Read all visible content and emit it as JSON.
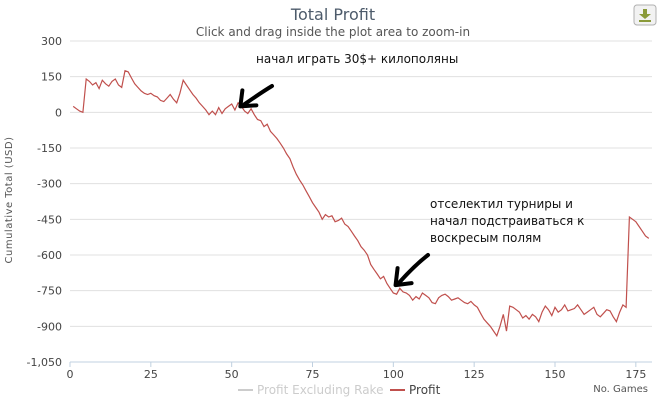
{
  "chart_data": {
    "type": "line",
    "title": "Total Profit",
    "subtitle": "Click and drag inside the plot area to zoom-in",
    "ylabel": "Cumulative Total (USD)",
    "xlabel": "No. Games",
    "xlim": [
      0,
      180
    ],
    "ylim": [
      -1050,
      300
    ],
    "x_ticks": [
      0,
      25,
      50,
      75,
      100,
      125,
      150,
      175
    ],
    "y_ticks": [
      300,
      150,
      0,
      -150,
      -300,
      -450,
      -600,
      -750,
      -900,
      -1050
    ],
    "y_tick_labels": [
      "300",
      "150",
      "0",
      "-150",
      "-300",
      "-450",
      "-600",
      "-750",
      "-900",
      "-1,050"
    ],
    "grid": "horizontal",
    "legend_position": "bottom",
    "series": [
      {
        "name": "Profit Excluding Rake",
        "color": "#cccccc",
        "x": [],
        "y": []
      },
      {
        "name": "Profit",
        "color": "#c0504d",
        "x": [
          1,
          2,
          3,
          4,
          5,
          6,
          7,
          8,
          9,
          10,
          11,
          12,
          13,
          14,
          15,
          16,
          17,
          18,
          19,
          20,
          21,
          22,
          23,
          24,
          25,
          26,
          27,
          28,
          29,
          30,
          31,
          32,
          33,
          34,
          35,
          36,
          37,
          38,
          39,
          40,
          41,
          42,
          43,
          44,
          45,
          46,
          47,
          48,
          49,
          50,
          51,
          52,
          53,
          54,
          55,
          56,
          57,
          58,
          59,
          60,
          61,
          62,
          63,
          64,
          65,
          66,
          67,
          68,
          69,
          70,
          71,
          72,
          73,
          74,
          75,
          76,
          77,
          78,
          79,
          80,
          81,
          82,
          83,
          84,
          85,
          86,
          87,
          88,
          89,
          90,
          91,
          92,
          93,
          94,
          95,
          96,
          97,
          98,
          99,
          100,
          101,
          102,
          103,
          104,
          105,
          106,
          107,
          108,
          109,
          110,
          111,
          112,
          113,
          114,
          115,
          116,
          117,
          118,
          119,
          120,
          121,
          122,
          123,
          124,
          125,
          126,
          127,
          128,
          129,
          130,
          131,
          132,
          133,
          134,
          135,
          136,
          137,
          138,
          139,
          140,
          141,
          142,
          143,
          144,
          145,
          146,
          147,
          148,
          149,
          150,
          151,
          152,
          153,
          154,
          155,
          156,
          157,
          158,
          159,
          160,
          161,
          162,
          163,
          164,
          165,
          166,
          167,
          168,
          169,
          170,
          171,
          172,
          173,
          174,
          175,
          176,
          177,
          178,
          179
        ],
        "y": [
          25,
          15,
          5,
          0,
          140,
          130,
          115,
          125,
          100,
          135,
          120,
          110,
          130,
          140,
          115,
          105,
          175,
          170,
          145,
          120,
          105,
          90,
          80,
          75,
          80,
          70,
          65,
          50,
          45,
          60,
          75,
          55,
          40,
          80,
          135,
          115,
          95,
          75,
          60,
          40,
          25,
          10,
          -10,
          5,
          -10,
          20,
          -5,
          15,
          25,
          35,
          10,
          40,
          25,
          5,
          -5,
          15,
          -10,
          -30,
          -35,
          -60,
          -50,
          -80,
          -95,
          -110,
          -130,
          -150,
          -175,
          -195,
          -230,
          -260,
          -285,
          -305,
          -330,
          -355,
          -380,
          -400,
          -420,
          -450,
          -430,
          -440,
          -435,
          -460,
          -455,
          -445,
          -470,
          -480,
          -500,
          -520,
          -540,
          -565,
          -580,
          -600,
          -640,
          -660,
          -680,
          -700,
          -690,
          -720,
          -740,
          -760,
          -765,
          -740,
          -755,
          -760,
          -770,
          -790,
          -775,
          -785,
          -760,
          -770,
          -780,
          -800,
          -805,
          -780,
          -770,
          -765,
          -775,
          -790,
          -785,
          -780,
          -790,
          -800,
          -805,
          -795,
          -810,
          -820,
          -845,
          -870,
          -885,
          -900,
          -920,
          -940,
          -900,
          -850,
          -920,
          -815,
          -820,
          -830,
          -840,
          -865,
          -855,
          -870,
          -850,
          -860,
          -880,
          -840,
          -815,
          -830,
          -855,
          -820,
          -840,
          -830,
          -810,
          -835,
          -830,
          -825,
          -810,
          -830,
          -850,
          -840,
          -830,
          -820,
          -850,
          -860,
          -845,
          -830,
          -835,
          -860,
          -880,
          -840,
          -810,
          -820,
          -440,
          -450,
          -460,
          -480,
          -500,
          -520,
          -530
        ]
      }
    ],
    "annotations": [
      {
        "lines": [
          "начал играть 30$+ килополяны"
        ],
        "x": 53,
        "y": 0
      },
      {
        "lines": [
          "отселектил турниры и",
          "начал подстраиваться к",
          "воскресым полям"
        ],
        "x": 101,
        "y": -735
      }
    ]
  }
}
